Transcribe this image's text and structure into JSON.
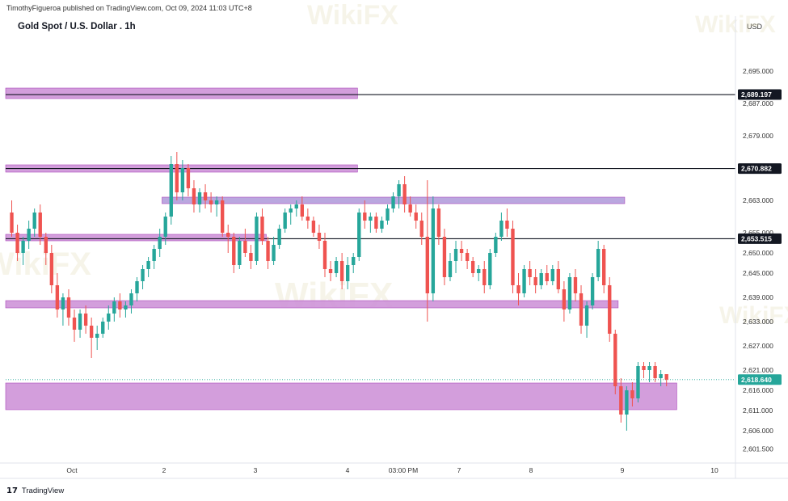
{
  "header": {
    "attribution": "TimothyFigueroa published on TradingView.com, Oct 09, 2024 11:03 UTC+8",
    "title": "Gold Spot / U.S. Dollar . 1h",
    "currency": "USD"
  },
  "footer": {
    "logo": "17",
    "brand": "TradingView"
  },
  "watermark": {
    "text": "WikiFX"
  },
  "colors": {
    "bull": "#26a69a",
    "bear": "#ef5350",
    "zone": "#ce93d8",
    "zone_border": "#ab47bc",
    "zone_blue": "#b39ddb",
    "line": "#131722",
    "last_price": "#26a69a"
  },
  "chart_data": {
    "type": "candlestick",
    "symbol": "Gold Spot / U.S. Dollar",
    "interval": "1h",
    "ylim": [
      2598,
      2703
    ],
    "y_ticks": [
      "2,695.000",
      "2,687.000",
      "2,679.000",
      "2,663.000",
      "2,655.000",
      "2,650.000",
      "2,645.000",
      "2,639.000",
      "2,633.000",
      "2,627.000",
      "2,621.000",
      "2,616.000",
      "2,611.000",
      "2,606.000",
      "2,601.500"
    ],
    "x_ticks": [
      "Oct",
      "2",
      "3",
      "4",
      "03:00 PM",
      "7",
      "8",
      "9",
      "10"
    ],
    "x_range": [
      "Oct 1 00:00",
      "Oct 10 08:00"
    ],
    "horizontal_lines": [
      {
        "label": "2,689.197",
        "value": 2689.197
      },
      {
        "label": "2,670.882",
        "value": 2670.882
      },
      {
        "label": "2,653.515",
        "value": 2653.515
      }
    ],
    "last_price": {
      "label": "2,618.640",
      "value": 2618.64
    },
    "zones": [
      {
        "low": 2688.2,
        "high": 2690.8,
        "x_start": "Oct 1 00:00",
        "x_end": "Oct 5 12:00",
        "color": "zone"
      },
      {
        "low": 2670.0,
        "high": 2671.8,
        "x_start": "Oct 1 00:00",
        "x_end": "Oct 5 12:00",
        "color": "zone"
      },
      {
        "low": 2653.0,
        "high": 2654.6,
        "x_start": "Oct 1 00:00",
        "x_end": "Oct 4 08:00",
        "color": "zone"
      },
      {
        "low": 2662.2,
        "high": 2663.8,
        "x_start": "Oct 3 00:00",
        "x_end": "Oct 8 22:00",
        "color": "zone_blue"
      },
      {
        "low": 2636.4,
        "high": 2638.2,
        "x_start": "Oct 1 00:00",
        "x_end": "Oct 8 20:00",
        "color": "zone"
      },
      {
        "low": 2611.2,
        "high": 2617.8,
        "x_start": "Oct 1 00:00",
        "x_end": "Oct 9 14:00",
        "color": "zone"
      }
    ],
    "candles": [
      [
        2660,
        2663,
        2654,
        2655
      ],
      [
        2655,
        2657,
        2648,
        2650
      ],
      [
        2650,
        2654,
        2647,
        2653
      ],
      [
        2653,
        2658,
        2651,
        2656
      ],
      [
        2656,
        2661,
        2654,
        2660
      ],
      [
        2660,
        2662,
        2652,
        2654
      ],
      [
        2654,
        2655,
        2647,
        2650
      ],
      [
        2650,
        2652,
        2640,
        2642
      ],
      [
        2642,
        2645,
        2634,
        2636
      ],
      [
        2636,
        2640,
        2632,
        2639
      ],
      [
        2639,
        2641,
        2632,
        2634
      ],
      [
        2634,
        2636,
        2628,
        2631
      ],
      [
        2631,
        2636,
        2629,
        2635
      ],
      [
        2635,
        2637,
        2630,
        2632
      ],
      [
        2632,
        2634,
        2624,
        2629
      ],
      [
        2629,
        2632,
        2626,
        2630
      ],
      [
        2630,
        2634,
        2629,
        2633
      ],
      [
        2633,
        2637,
        2631,
        2635
      ],
      [
        2635,
        2639,
        2633,
        2638
      ],
      [
        2638,
        2640,
        2634,
        2636
      ],
      [
        2636,
        2638,
        2634,
        2637
      ],
      [
        2637,
        2641,
        2635,
        2640
      ],
      [
        2640,
        2644,
        2638,
        2643
      ],
      [
        2643,
        2647,
        2641,
        2646
      ],
      [
        2646,
        2649,
        2644,
        2648
      ],
      [
        2648,
        2652,
        2646,
        2651
      ],
      [
        2651,
        2656,
        2649,
        2654
      ],
      [
        2654,
        2660,
        2652,
        2659
      ],
      [
        2659,
        2674,
        2657,
        2672
      ],
      [
        2672,
        2675,
        2663,
        2665
      ],
      [
        2665,
        2673,
        2663,
        2671
      ],
      [
        2671,
        2672,
        2664,
        2666
      ],
      [
        2666,
        2668,
        2660,
        2662
      ],
      [
        2662,
        2666,
        2660,
        2665
      ],
      [
        2665,
        2667,
        2661,
        2663
      ],
      [
        2663,
        2665,
        2660,
        2662
      ],
      [
        2662,
        2664,
        2659,
        2663
      ],
      [
        2663,
        2664,
        2654,
        2655
      ],
      [
        2655,
        2657,
        2650,
        2654
      ],
      [
        2654,
        2655,
        2645,
        2647
      ],
      [
        2647,
        2654,
        2646,
        2653
      ],
      [
        2653,
        2656,
        2649,
        2650
      ],
      [
        2650,
        2652,
        2646,
        2648
      ],
      [
        2648,
        2660,
        2647,
        2659
      ],
      [
        2659,
        2661,
        2652,
        2653
      ],
      [
        2653,
        2654,
        2646,
        2648
      ],
      [
        2648,
        2654,
        2647,
        2652
      ],
      [
        2652,
        2657,
        2651,
        2656
      ],
      [
        2656,
        2661,
        2655,
        2660
      ],
      [
        2660,
        2662,
        2657,
        2661
      ],
      [
        2661,
        2663,
        2659,
        2662
      ],
      [
        2662,
        2664,
        2658,
        2659
      ],
      [
        2659,
        2661,
        2656,
        2658
      ],
      [
        2658,
        2659,
        2654,
        2655
      ],
      [
        2655,
        2657,
        2651,
        2653
      ],
      [
        2653,
        2655,
        2644,
        2646
      ],
      [
        2646,
        2648,
        2643,
        2645
      ],
      [
        2645,
        2649,
        2644,
        2648
      ],
      [
        2648,
        2650,
        2641,
        2643
      ],
      [
        2643,
        2649,
        2641,
        2647
      ],
      [
        2647,
        2650,
        2645,
        2649
      ],
      [
        2649,
        2661,
        2648,
        2660
      ],
      [
        2660,
        2663,
        2656,
        2658
      ],
      [
        2658,
        2660,
        2655,
        2659
      ],
      [
        2659,
        2660,
        2655,
        2656
      ],
      [
        2656,
        2659,
        2655,
        2658
      ],
      [
        2658,
        2662,
        2657,
        2661
      ],
      [
        2661,
        2665,
        2660,
        2664
      ],
      [
        2664,
        2668,
        2661,
        2667
      ],
      [
        2667,
        2669,
        2660,
        2662
      ],
      [
        2662,
        2664,
        2659,
        2660
      ],
      [
        2660,
        2662,
        2656,
        2658
      ],
      [
        2658,
        2660,
        2652,
        2654
      ],
      [
        2654,
        2668,
        2633,
        2640
      ],
      [
        2640,
        2664,
        2638,
        2661
      ],
      [
        2661,
        2662,
        2652,
        2654
      ],
      [
        2654,
        2656,
        2642,
        2644
      ],
      [
        2644,
        2650,
        2643,
        2648
      ],
      [
        2648,
        2653,
        2645,
        2651
      ],
      [
        2651,
        2653,
        2648,
        2650
      ],
      [
        2650,
        2651,
        2646,
        2648
      ],
      [
        2648,
        2649,
        2644,
        2645
      ],
      [
        2645,
        2647,
        2643,
        2646
      ],
      [
        2646,
        2648,
        2640,
        2642
      ],
      [
        2642,
        2651,
        2641,
        2650
      ],
      [
        2650,
        2655,
        2649,
        2654
      ],
      [
        2654,
        2660,
        2653,
        2658
      ],
      [
        2658,
        2661,
        2654,
        2656
      ],
      [
        2656,
        2658,
        2640,
        2642
      ],
      [
        2642,
        2645,
        2637,
        2640
      ],
      [
        2640,
        2647,
        2639,
        2646
      ],
      [
        2646,
        2648,
        2642,
        2644
      ],
      [
        2644,
        2646,
        2640,
        2642
      ],
      [
        2642,
        2646,
        2641,
        2645
      ],
      [
        2645,
        2647,
        2642,
        2643
      ],
      [
        2643,
        2647,
        2642,
        2646
      ],
      [
        2646,
        2648,
        2640,
        2641
      ],
      [
        2641,
        2643,
        2633,
        2636
      ],
      [
        2636,
        2645,
        2635,
        2644
      ],
      [
        2644,
        2646,
        2638,
        2640
      ],
      [
        2640,
        2642,
        2630,
        2632
      ],
      [
        2632,
        2638,
        2629,
        2637
      ],
      [
        2637,
        2645,
        2636,
        2644
      ],
      [
        2644,
        2653,
        2643,
        2651
      ],
      [
        2651,
        2652,
        2640,
        2642
      ],
      [
        2642,
        2644,
        2628,
        2630
      ],
      [
        2630,
        2631,
        2615,
        2617
      ],
      [
        2617,
        2619,
        2608,
        2610
      ],
      [
        2610,
        2617,
        2606,
        2616
      ],
      [
        2616,
        2618,
        2612,
        2614
      ],
      [
        2614,
        2623,
        2613,
        2622
      ],
      [
        2622,
        2623,
        2619,
        2621
      ],
      [
        2621,
        2623,
        2618,
        2622
      ],
      [
        2622,
        2623,
        2618,
        2619
      ],
      [
        2619,
        2621,
        2617,
        2620
      ],
      [
        2620,
        2620,
        2617,
        2618.64
      ]
    ]
  }
}
